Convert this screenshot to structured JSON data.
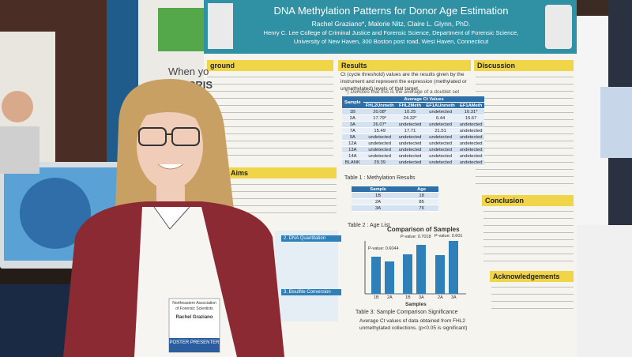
{
  "poster": {
    "title": "DNA Methylation Patterns for Donor Age Estimation",
    "authors": "Rachel Graziano*, Malorie Nitz, Claire L. Glynn, PhD.",
    "affiliation": "Henry C. Lee College of Criminal Justice and Forensic Science, Department of Forensic Science,",
    "address": "University of New Haven, 300 Boston post road, West Haven, Connecticut",
    "sections": {
      "background": "ground",
      "results": "Results",
      "discussion": "Discussion",
      "aims": "Aims",
      "conclusion": "Conclusion",
      "acknowledgements": "Acknowledgements"
    },
    "results_text": "Ct (cycle threshold) values are the results given by the instrument and represent the expression (methylated or unmethylated) levels of that target.",
    "table1": {
      "note": "*) Denotes that this is the average of a doublet set",
      "sample_header": "Sample",
      "group_header": "Average Ct Values",
      "columns": [
        "FHL2Unmeth",
        "FHL2Meth",
        "EF1AUnmeth",
        "EF1AMeth"
      ],
      "rows": [
        [
          "1B",
          "20.08*",
          "10.25",
          "undetected",
          "16.31*"
        ],
        [
          "2A",
          "17.79*",
          "24.32*",
          "6.44",
          "15.67"
        ],
        [
          "3A",
          "26.07*",
          "undetected",
          "undetected",
          "undetected"
        ],
        [
          "7A",
          "15.49",
          "17.71",
          "21.51",
          "undetected"
        ],
        [
          "9A",
          "undetected",
          "undetected",
          "undetected",
          "undetected"
        ],
        [
          "12A",
          "undetected",
          "undetected",
          "undetected",
          "undetected"
        ],
        [
          "13A",
          "undetected",
          "undetected",
          "undetected",
          "undetected"
        ],
        [
          "14A",
          "undetected",
          "undetected",
          "undetected",
          "undetected"
        ],
        [
          "BLANK",
          "29.39",
          "undetected",
          "undetected",
          "undetected"
        ]
      ],
      "caption": "Table 1 : Methylation Results"
    },
    "table2": {
      "header": [
        "Sample",
        "Age"
      ],
      "rows": [
        [
          "1B",
          "18"
        ],
        [
          "2A",
          "85"
        ],
        [
          "3A",
          "76"
        ]
      ],
      "caption": "Table 2 : Age List"
    },
    "chart": {
      "title": "Comparison of Samples",
      "pvalues": [
        "P-value: 0.6044",
        "P-value: 0.7018",
        "P-value: 0.601"
      ],
      "categories": [
        "1B",
        "2A",
        "1B",
        "3A",
        "2A",
        "3A"
      ],
      "xlabel": "Samples"
    },
    "table3_caption": "Table 3: Sample Comparison Significance",
    "table3_text": "Average Ct values of data obtained from FHL2 unmethylated collections. (p<0.05 is significant)",
    "method_steps": [
      "2. DNA Quantitation",
      "3. Bisulfite Conversion"
    ]
  },
  "badge": {
    "org": "Northeastern Association of Forensic Scientists",
    "name": "Rachel Graziano",
    "role": "POSTER PRESENTER"
  },
  "booth": {
    "line1": "When yo",
    "line2": "CRIS"
  }
}
